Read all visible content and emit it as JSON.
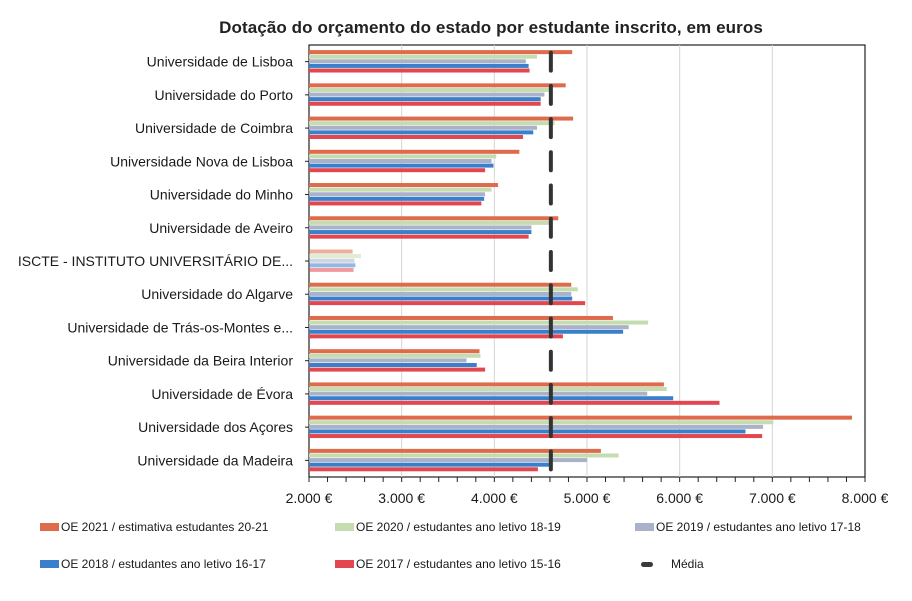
{
  "chart_data": {
    "type": "bar",
    "orientation": "horizontal",
    "title": "Dotação do orçamento do estado por estudante inscrito, em euros",
    "xlabel": "",
    "ylabel": "",
    "xlim": [
      2000,
      8000
    ],
    "x_ticks": [
      2000,
      3000,
      4000,
      5000,
      6000,
      7000,
      8000
    ],
    "x_tick_labels": [
      "2.000 €",
      "3.000 €",
      "4.000 €",
      "5.000 €",
      "6.000 €",
      "7.000 €",
      "8.000 €"
    ],
    "grid": "vertical",
    "legend_position": "bottom",
    "categories": [
      "Universidade de Lisboa",
      "Universidade do Porto",
      "Universidade de Coimbra",
      "Universidade Nova de Lisboa",
      "Universidade do Minho",
      "Universidade de Aveiro",
      "ISCTE - INSTITUTO UNIVERSITÁRIO DE...",
      "Universidade do Algarve",
      "Universidade de Trás-os-Montes e...",
      "Universidade da Beira Interior",
      "Universidade de Évora",
      "Universidade dos Açores",
      "Universidade da Madeira"
    ],
    "series": [
      {
        "name": "OE 2021 / estimativa estudantes 20-21",
        "color": "#dd6b4c",
        "values": [
          4840,
          4770,
          4850,
          4270,
          4040,
          4690,
          2470,
          4830,
          5280,
          3840,
          5830,
          7860,
          5150
        ]
      },
      {
        "name": "OE 2020 / estudantes ano letivo 18-19",
        "color": "#c4dcb0",
        "values": [
          4460,
          4600,
          4650,
          4020,
          3970,
          4590,
          2560,
          4900,
          5660,
          3850,
          5860,
          7010,
          5340
        ]
      },
      {
        "name": "OE 2019 / estudantes ano letivo 17-18",
        "color": "#a9b2c8",
        "values": [
          4340,
          4540,
          4460,
          3970,
          3900,
          4400,
          2490,
          4830,
          5450,
          3700,
          5650,
          6900,
          5000
        ]
      },
      {
        "name": "OE 2018 / estudantes ano letivo 16-17",
        "color": "#3a7fcb",
        "values": [
          4370,
          4500,
          4420,
          3990,
          3890,
          4400,
          2500,
          4840,
          5390,
          3810,
          5930,
          6710,
          4600
        ]
      },
      {
        "name": "OE 2017 / estudantes ano letivo 15-16",
        "color": "#e2474f",
        "values": [
          4380,
          4500,
          4310,
          3900,
          3860,
          4370,
          2480,
          4980,
          4740,
          3900,
          6430,
          6890,
          4470
        ]
      }
    ],
    "faded_categories": [
      "ISCTE - INSTITUTO UNIVERSITÁRIO DE..."
    ],
    "mean": {
      "name": "Média",
      "value": 4610,
      "color": "#333333",
      "style": "dashed"
    }
  }
}
